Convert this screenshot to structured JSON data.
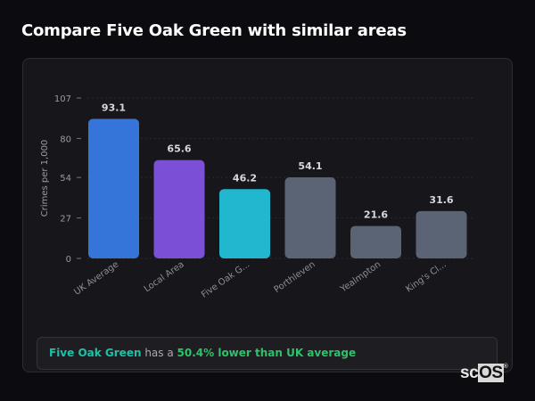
{
  "page_title": "Compare Five Oak Green with similar areas",
  "chart_data": {
    "type": "bar",
    "title": "",
    "xlabel": "",
    "ylabel": "Crimes per 1,000",
    "ylim": [
      0,
      107
    ],
    "yticks": [
      0,
      27,
      54,
      80,
      107
    ],
    "grid": true,
    "categories": [
      "UK Average",
      "Local Area",
      "Five Oak G...",
      "Porthleven",
      "Yealmpton",
      "King's Cl..."
    ],
    "values": [
      93.1,
      65.6,
      46.2,
      54.1,
      21.6,
      31.6
    ],
    "data_labels": [
      "93.1",
      "65.6",
      "46.2",
      "54.1",
      "21.6",
      "31.6"
    ],
    "colors": [
      "#3574d8",
      "#7b4fd6",
      "#21b8cf",
      "#5a6474",
      "#5a6474",
      "#5a6474"
    ]
  },
  "summary": {
    "area": "Five Oak Green",
    "middle": " has a ",
    "comparison": "50.4% lower than UK average"
  },
  "watermark": {
    "prefix": "sc",
    "boxed": "OS",
    "mark": "®"
  }
}
